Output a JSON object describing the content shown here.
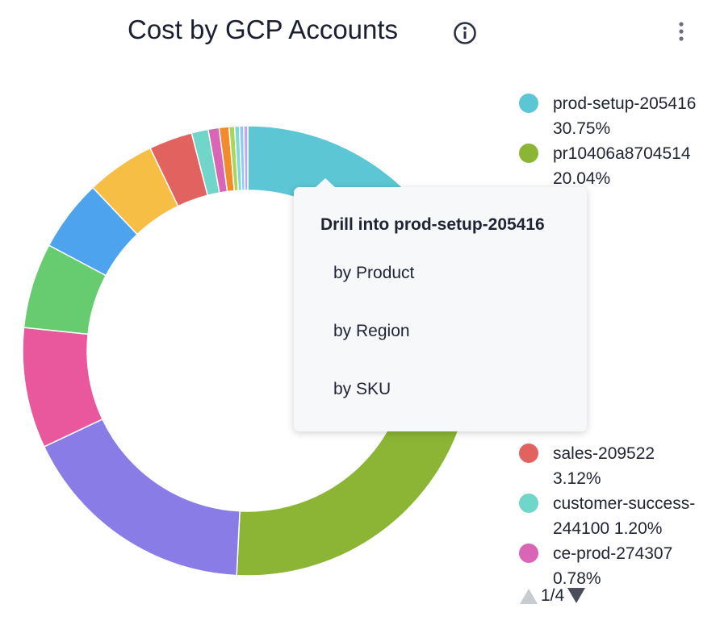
{
  "chart_data": {
    "type": "pie",
    "title": "Cost by GCP Accounts",
    "categories": [
      "prod-setup-205416",
      "pr10406a8704514",
      null,
      null,
      null,
      null,
      null,
      "sales-209522",
      "customer-success-244100",
      "ce-prod-274307",
      null,
      null,
      null,
      null,
      null
    ],
    "values": [
      30.75,
      20.04,
      17.2,
      8.66,
      6.12,
      5.15,
      4.94,
      3.12,
      1.2,
      0.78,
      0.7,
      0.4,
      0.35,
      0.3,
      0.29
    ],
    "value_labels": [
      "30.75%",
      "20.04%",
      null,
      null,
      null,
      null,
      null,
      "3.12%",
      "1.20%",
      "0.78%",
      null,
      null,
      null,
      null,
      null
    ],
    "colors": [
      "#5cc6d4",
      "#8cb535",
      "#8a7ce6",
      "#e9579c",
      "#67cc6f",
      "#4da3ee",
      "#f7be45",
      "#e2625f",
      "#70d6c9",
      "#da64b6",
      "#f28b2c",
      "#a9d65a",
      "#7fdbd0",
      "#8fc8f5",
      "#c3a7ef"
    ],
    "legend_page": "1/4"
  },
  "tooltip": {
    "title": "Drill into prod-setup-205416",
    "items": [
      "by Product",
      "by Region",
      "by SKU"
    ]
  }
}
